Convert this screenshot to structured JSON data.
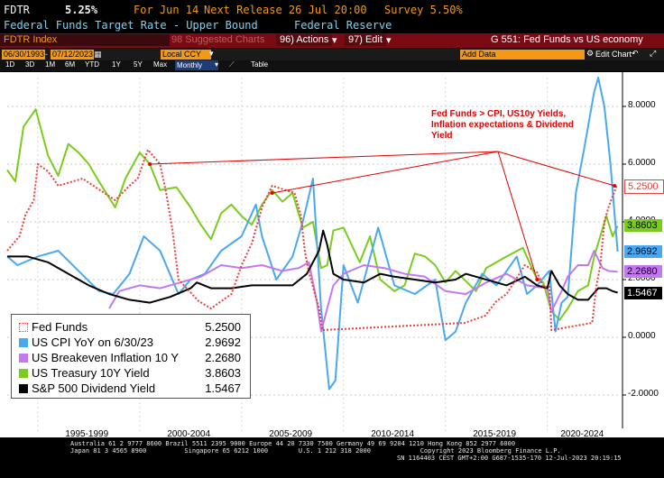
{
  "header": {
    "ticker": "FDTR",
    "value": "5.25%",
    "for_label": "For Jun 14",
    "next_release": "Next Release 26 Jul 20:00",
    "survey": "Survey 5.50%",
    "description": "Federal Funds Target Rate - Upper Bound",
    "source": "Federal Reserve"
  },
  "toolbar": {
    "security": "FDTR Index",
    "suggested_charts": "98 Suggested Charts",
    "actions": "96) Actions",
    "edit": "97) Edit",
    "function_title": "G 551: Fed Funds vs US economy"
  },
  "date_bar": {
    "start_date": "06/30/1993",
    "end_date": "07/12/2023",
    "currency": "Local CCY",
    "add_data": "Add Data",
    "edit_chart": "Edit Chart"
  },
  "periods": [
    "1D",
    "3D",
    "1M",
    "6M",
    "YTD",
    "1Y",
    "5Y",
    "Max"
  ],
  "frequency": "Monthly",
  "table_label": "Table",
  "chart_data": {
    "type": "line",
    "annotation": "Fed Funds > CPI, US10y Yields, Inflation expectations & Dividend Yield",
    "yticks": [
      "8.0000",
      "6.0000",
      "4.0000",
      "2.0000",
      "0.0000",
      "-2.0000"
    ],
    "ylim": [
      -3.0,
      9.0
    ],
    "xlim": [
      1993.5,
      2023.6
    ],
    "xtick_labels": [
      "1995-1999",
      "2000-2004",
      "2005-2009",
      "2010-2014",
      "2015-2019",
      "2020-2024"
    ],
    "series": [
      {
        "name": "Fed Funds",
        "color": "#e8403c",
        "dotted": true,
        "last": "5.2500",
        "x": [
          1993.5,
          1994.1,
          1994.4,
          1994.8,
          1995.0,
          1995.5,
          1996.0,
          1997.2,
          1998.8,
          1999.5,
          1999.9,
          2000.4,
          2001.0,
          2001.3,
          2001.6,
          2001.9,
          2002.9,
          2003.5,
          2004.5,
          2005.0,
          2005.5,
          2006.0,
          2006.5,
          2007.6,
          2007.9,
          2008.1,
          2008.3,
          2008.8,
          2008.96,
          2015.95,
          2016.95,
          2017.5,
          2018.0,
          2018.9,
          2019.5,
          2019.8,
          2020.1,
          2020.2,
          2022.2,
          2022.4,
          2022.6,
          2022.8,
          2023.0,
          2023.4
        ],
        "y": [
          3.0,
          3.5,
          4.25,
          4.75,
          6.0,
          5.75,
          5.25,
          5.5,
          4.75,
          5.25,
          5.5,
          6.5,
          6.0,
          5.0,
          3.75,
          2.0,
          1.25,
          1.0,
          1.5,
          2.5,
          3.25,
          4.5,
          5.25,
          5.0,
          4.25,
          3.0,
          2.25,
          1.0,
          0.25,
          0.5,
          0.75,
          1.25,
          1.5,
          2.5,
          2.25,
          1.75,
          1.75,
          0.25,
          0.5,
          1.75,
          2.5,
          4.0,
          4.5,
          5.25
        ]
      },
      {
        "name": "US CPI YoY on 6/30/23",
        "color": "#4aa8f0",
        "dotted": false,
        "last": "2.9692",
        "x": [
          1993.5,
          1994.0,
          1995.0,
          1996.0,
          1997.0,
          1998.0,
          1998.7,
          1999.5,
          2000.2,
          2001.0,
          2001.9,
          2002.5,
          2003.2,
          2004.0,
          2005.0,
          2005.7,
          2006.0,
          2006.7,
          2007.5,
          2008.0,
          2008.5,
          2008.9,
          2009.3,
          2009.6,
          2010.0,
          2010.7,
          2011.7,
          2012.5,
          2013.5,
          2014.5,
          2015.0,
          2015.5,
          2016.0,
          2016.8,
          2017.5,
          2018.5,
          2019.0,
          2019.5,
          2020.1,
          2020.4,
          2020.7,
          2021.0,
          2021.4,
          2021.8,
          2022.3,
          2022.5,
          2022.8,
          2023.1,
          2023.45
        ],
        "y": [
          2.8,
          2.5,
          2.8,
          3.0,
          2.3,
          1.6,
          1.5,
          2.2,
          3.5,
          3.0,
          1.5,
          2.0,
          2.2,
          3.0,
          3.5,
          4.6,
          3.5,
          2.0,
          2.8,
          4.0,
          5.5,
          1.0,
          -1.8,
          -1.5,
          2.5,
          1.2,
          3.8,
          1.8,
          1.5,
          2.0,
          -0.1,
          0.2,
          1.2,
          2.2,
          1.8,
          2.8,
          1.5,
          1.8,
          2.3,
          0.2,
          1.2,
          1.4,
          5.0,
          6.5,
          8.5,
          9.0,
          8.0,
          6.0,
          2.9692
        ]
      },
      {
        "name": "US Breakeven Inflation 10 Y",
        "color": "#c478f0",
        "dotted": false,
        "last": "2.2680",
        "x": [
          1998.5,
          1999.0,
          2000.0,
          2001.0,
          2002.0,
          2003.0,
          2004.0,
          2005.0,
          2006.0,
          2007.0,
          2007.8,
          2008.3,
          2008.7,
          2008.9,
          2009.5,
          2010.0,
          2011.0,
          2012.0,
          2013.0,
          2014.0,
          2015.0,
          2016.0,
          2017.0,
          2018.0,
          2019.0,
          2020.0,
          2020.2,
          2020.7,
          2021.0,
          2021.5,
          2022.0,
          2022.3,
          2022.7,
          2023.0,
          2023.45
        ],
        "y": [
          1.0,
          1.6,
          1.8,
          1.7,
          1.9,
          2.1,
          2.5,
          2.4,
          2.5,
          2.3,
          2.4,
          2.6,
          1.2,
          0.2,
          1.8,
          2.2,
          2.5,
          2.4,
          2.2,
          2.1,
          1.6,
          1.5,
          1.9,
          2.2,
          1.8,
          1.7,
          0.9,
          1.6,
          2.1,
          2.5,
          2.5,
          3.0,
          2.4,
          2.3,
          2.268
        ]
      },
      {
        "name": "US Treasury 10Y Yield",
        "color": "#7acc1c",
        "dotted": false,
        "last": "3.8603",
        "x": [
          1993.5,
          1993.9,
          1994.3,
          1994.9,
          1995.5,
          1996.0,
          1996.5,
          1997.0,
          1997.5,
          1998.0,
          1998.8,
          1999.3,
          2000.0,
          2000.5,
          2001.0,
          2001.8,
          2002.5,
          2003.0,
          2003.5,
          2004.0,
          2004.5,
          2005.0,
          2005.5,
          2006.0,
          2006.5,
          2007.0,
          2007.5,
          2008.0,
          2008.5,
          2008.9,
          2009.2,
          2009.5,
          2010.0,
          2010.8,
          2011.3,
          2011.8,
          2012.5,
          2013.0,
          2013.5,
          2014.0,
          2014.5,
          2015.0,
          2015.5,
          2016.5,
          2017.0,
          2018.0,
          2018.8,
          2019.5,
          2019.8,
          2020.2,
          2020.6,
          2021.0,
          2021.5,
          2022.0,
          2022.3,
          2022.6,
          2022.9,
          2023.2,
          2023.45
        ],
        "y": [
          5.8,
          5.4,
          7.3,
          7.9,
          6.3,
          5.6,
          6.7,
          6.4,
          6.0,
          5.4,
          4.5,
          5.5,
          6.4,
          6.0,
          5.1,
          5.2,
          4.5,
          3.9,
          3.4,
          4.3,
          4.6,
          4.2,
          3.9,
          4.6,
          5.1,
          4.7,
          5.0,
          3.8,
          4.0,
          2.4,
          2.5,
          3.7,
          3.8,
          2.6,
          3.5,
          2.0,
          1.6,
          1.8,
          2.9,
          2.8,
          2.5,
          1.9,
          2.3,
          1.6,
          2.4,
          2.8,
          3.1,
          2.0,
          1.9,
          0.9,
          0.6,
          1.0,
          1.6,
          1.8,
          2.8,
          3.5,
          4.2,
          3.5,
          3.86
        ]
      },
      {
        "name": "S&P 500 Dividend Yield",
        "color": "#000000",
        "dotted": false,
        "last": "1.5467",
        "x": [
          1993.5,
          1994.5,
          1995.5,
          1996.5,
          1997.5,
          1998.5,
          1999.5,
          2000.5,
          2001.5,
          2002.5,
          2002.8,
          2003.5,
          2004.5,
          2005.5,
          2006.5,
          2007.5,
          2008.2,
          2008.8,
          2009.0,
          2009.2,
          2009.5,
          2010.0,
          2011.0,
          2011.8,
          2012.5,
          2013.5,
          2014.5,
          2015.5,
          2016.0,
          2016.5,
          2017.5,
          2018.0,
          2018.9,
          2019.5,
          2020.0,
          2020.2,
          2020.6,
          2021.0,
          2021.5,
          2022.0,
          2022.5,
          2022.9,
          2023.2,
          2023.45
        ],
        "y": [
          2.8,
          2.8,
          2.6,
          2.2,
          1.8,
          1.5,
          1.3,
          1.2,
          1.4,
          1.7,
          1.9,
          1.7,
          1.7,
          1.8,
          1.8,
          1.8,
          2.2,
          3.0,
          3.7,
          3.2,
          2.2,
          2.0,
          1.9,
          2.2,
          2.1,
          2.0,
          1.9,
          2.0,
          2.2,
          2.1,
          1.9,
          1.8,
          2.1,
          1.8,
          1.7,
          2.3,
          1.8,
          1.5,
          1.3,
          1.3,
          1.7,
          1.7,
          1.6,
          1.5467
        ]
      }
    ]
  },
  "footer": {
    "line1": "Australia 61 2 9777 8600 Brazil 5511 2395 9000 Europe 44 20 7330 7500 Germany 49 69 9204 1210 Hong Kong 852 2977 6000",
    "line2": "Japan 81 3 4565 8900          Singapore 65 6212 1000        U.S. 1 212 318 2000             Copyright 2023 Bloomberg Finance L.P.",
    "line3": "SN 1164403 CEST GMT+2:00 G687-1535-170 12-Jul-2023 20:19:15"
  }
}
